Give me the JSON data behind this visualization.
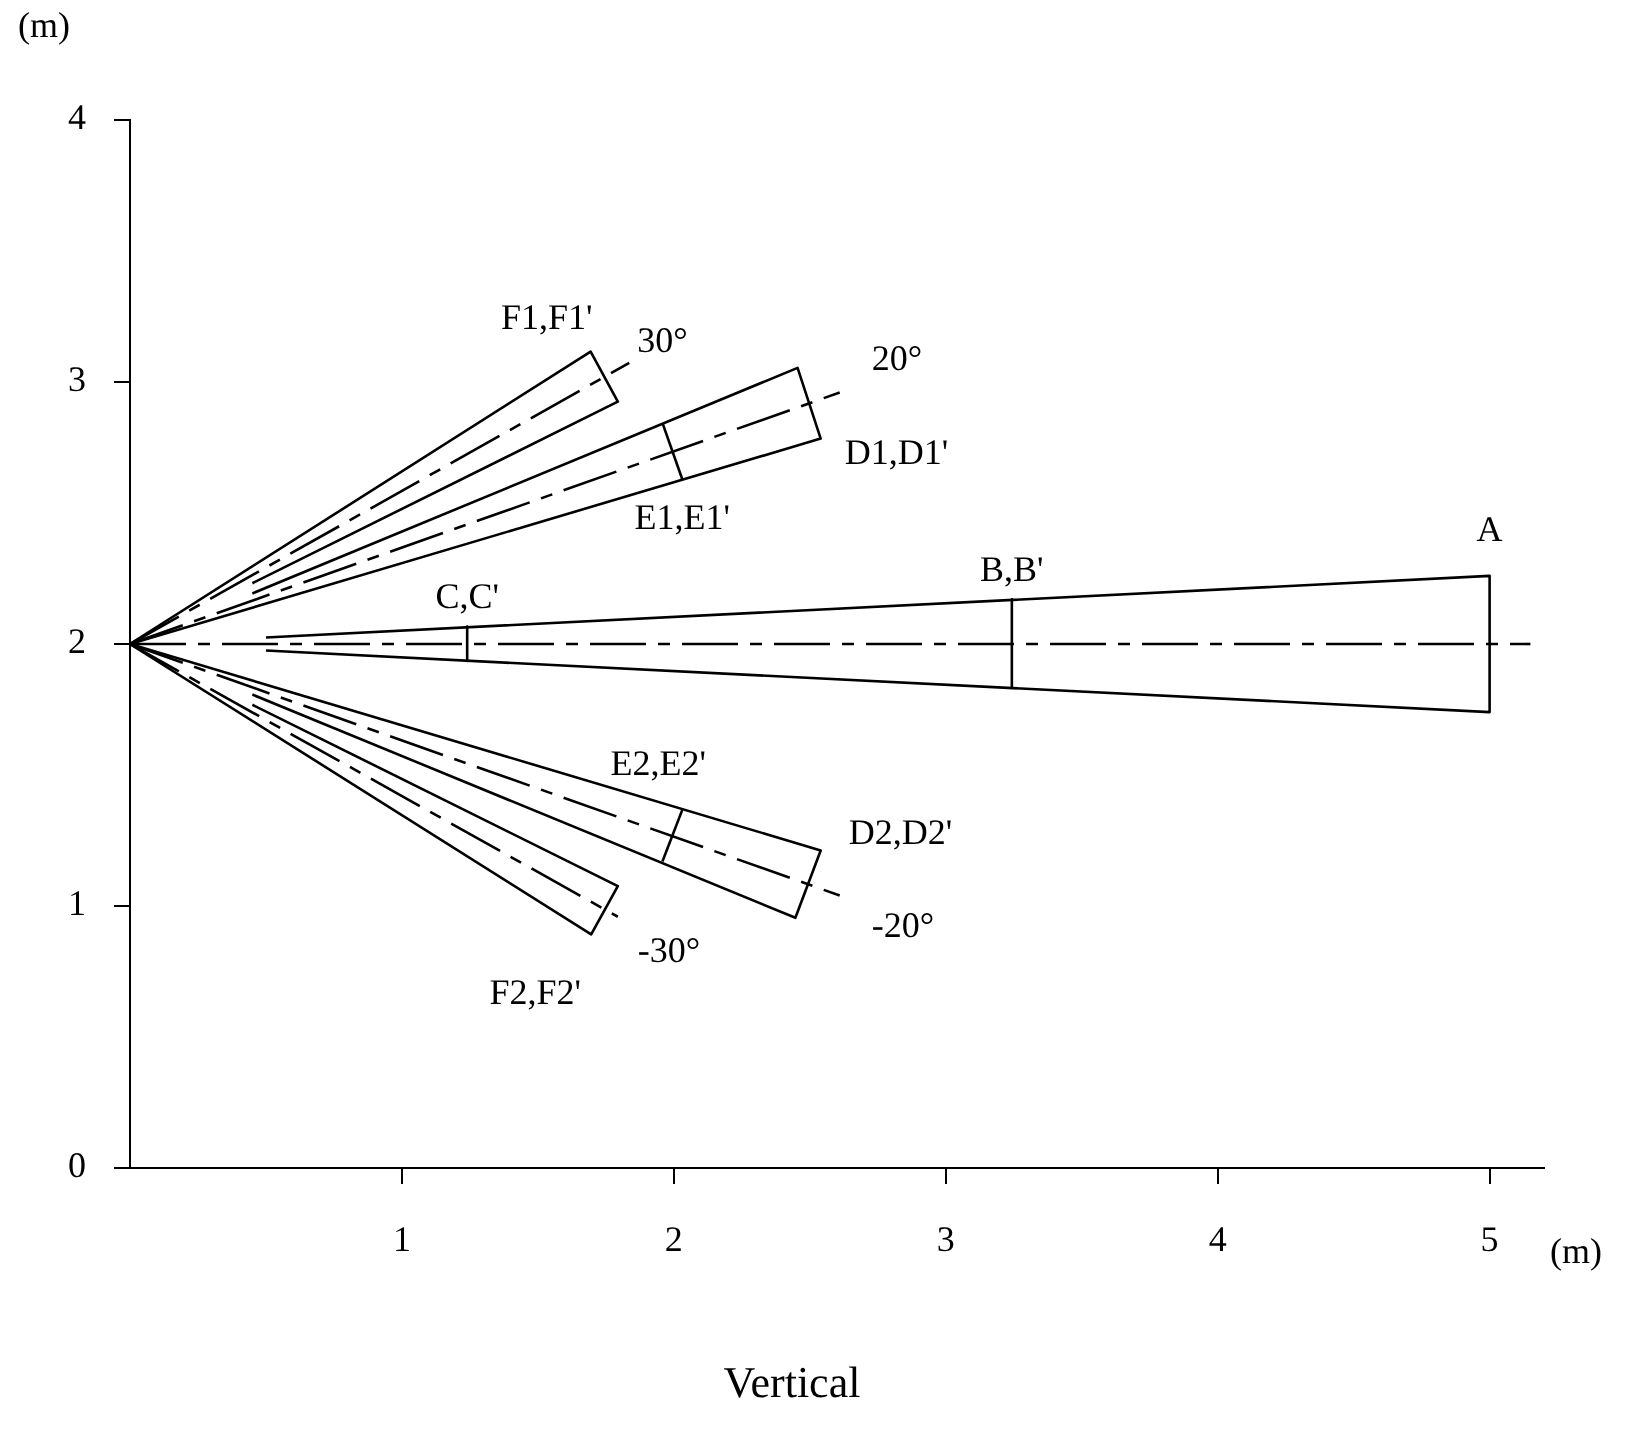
{
  "chart_data": {
    "type": "line",
    "title": "Vertical",
    "xlabel": "(m)",
    "ylabel": "(m)",
    "xlim": [
      0,
      5.2
    ],
    "xticks": [
      1,
      2,
      3,
      4,
      5
    ],
    "ylim": [
      0,
      4
    ],
    "yticks": [
      0,
      1,
      2,
      3,
      4
    ],
    "grid": false,
    "legend": false,
    "marker": "none",
    "series": [
      {
        "type": "line",
        "color": "#000000",
        "line_style": "solid",
        "x": [
          0.5,
          5,
          5,
          0.5
        ],
        "values": [
          2.025,
          2.26,
          1.74,
          1.975
        ]
      },
      {
        "type": "line",
        "color": "#000000",
        "line_style": "dashed",
        "x": [
          0,
          5.15
        ],
        "values": [
          2,
          2
        ]
      },
      {
        "type": "line",
        "color": "#000000",
        "line_style": "solid",
        "x": [
          3.243,
          3.243
        ],
        "values": [
          2.171,
          1.832
        ]
      },
      {
        "type": "line",
        "color": "#000000",
        "line_style": "solid",
        "x": [
          1.24,
          1.24
        ],
        "values": [
          2.067,
          1.935
        ]
      },
      {
        "type": "line",
        "color": "#000000",
        "line_style": "solid",
        "x": [
          0.45,
          2.455,
          2.54,
          0
        ],
        "values": [
          2.193,
          3.054,
          2.784,
          2
        ]
      },
      {
        "type": "line",
        "color": "#000000",
        "line_style": "dashed",
        "x": [
          0,
          2.61
        ],
        "values": [
          2,
          2.96
        ]
      },
      {
        "type": "line",
        "color": "#000000",
        "line_style": "solid",
        "x": [
          1.958,
          2.031
        ],
        "values": [
          2.844,
          2.629
        ]
      },
      {
        "type": "line",
        "color": "#000000",
        "line_style": "solid",
        "x": [
          0,
          1.694,
          1.794,
          0.45
        ],
        "values": [
          2,
          3.116,
          2.925,
          2.232
        ]
      },
      {
        "type": "line",
        "color": "#000000",
        "line_style": "dashed",
        "x": [
          0,
          1.836
        ],
        "values": [
          2,
          3.073
        ]
      },
      {
        "type": "line",
        "color": "#000000",
        "line_style": "solid",
        "x": [
          0,
          2.54,
          2.447,
          0.45
        ],
        "values": [
          2,
          1.212,
          0.955,
          1.807
        ]
      },
      {
        "type": "line",
        "color": "#000000",
        "line_style": "dashed",
        "x": [
          0,
          2.61
        ],
        "values": [
          2,
          1.04
        ]
      },
      {
        "type": "line",
        "color": "#000000",
        "line_style": "solid",
        "x": [
          2.031,
          1.958
        ],
        "values": [
          1.367,
          1.17
        ]
      },
      {
        "type": "line",
        "color": "#000000",
        "line_style": "solid",
        "x": [
          0.45,
          1.794,
          1.696,
          0
        ],
        "values": [
          1.768,
          1.076,
          0.892,
          2
        ]
      },
      {
        "type": "line",
        "color": "#000000",
        "line_style": "dashed",
        "x": [
          0,
          1.794
        ],
        "values": [
          2,
          0.959
        ]
      }
    ],
    "annotations": [
      {
        "text": "A",
        "x": 5,
        "y": 2.26
      },
      {
        "text": "B,B'",
        "x": 3.243,
        "y": 2.171
      },
      {
        "text": "C,C'",
        "x": 1.24,
        "y": 2.067
      },
      {
        "text": "F1,F1'",
        "x": 1.694,
        "y": 3.116
      },
      {
        "text": "30°",
        "x": 1.836,
        "y": 3.073
      },
      {
        "text": "20°",
        "x": 2.61,
        "y": 2.96
      },
      {
        "text": "D1,D1'",
        "x": 2.54,
        "y": 2.784
      },
      {
        "text": "E1,E1'",
        "x": 2.031,
        "y": 2.629
      },
      {
        "text": "E2,E2'",
        "x": 2.031,
        "y": 1.367
      },
      {
        "text": "D2,D2'",
        "x": 2.54,
        "y": 1.212
      },
      {
        "text": "-20°",
        "x": 2.61,
        "y": 1.04
      },
      {
        "text": "-30°",
        "x": 1.794,
        "y": 0.959
      },
      {
        "text": "F2,F2'",
        "x": 1.696,
        "y": 0.892
      }
    ]
  }
}
